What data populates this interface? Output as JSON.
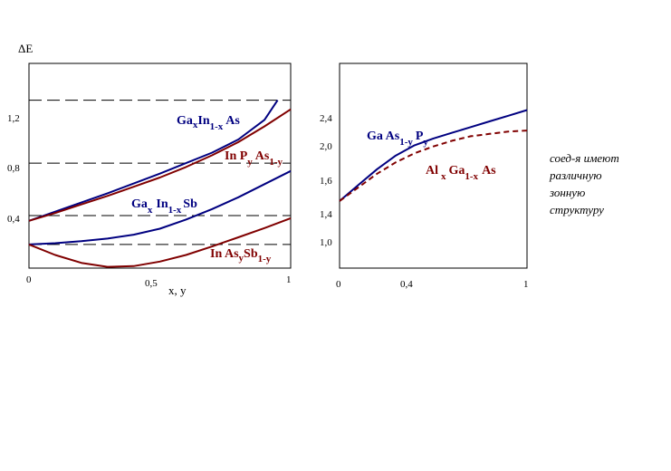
{
  "chart_data": [
    {
      "type": "line",
      "ylabel": "ΔE",
      "xlabel": "x, y",
      "xlim": [
        0,
        1
      ],
      "ylim": [
        0,
        1.56
      ],
      "x_ticks": [
        "0",
        "0,5",
        "1"
      ],
      "y_ticks": [
        "0,4",
        "0,8",
        "1,2"
      ],
      "reference_lines": [
        0.18,
        0.4,
        0.8,
        1.28
      ],
      "series": [
        {
          "name": "GaxIn1-xAs",
          "label_parts": [
            "Ga",
            "x",
            "In",
            "1-x",
            "As"
          ],
          "color": "#000080",
          "style": "solid",
          "x": [
            0,
            0.1,
            0.2,
            0.3,
            0.4,
            0.5,
            0.6,
            0.7,
            0.8,
            0.9,
            0.95
          ],
          "y": [
            0.36,
            0.43,
            0.5,
            0.57,
            0.645,
            0.72,
            0.8,
            0.88,
            0.98,
            1.13,
            1.28
          ]
        },
        {
          "name": "InPyAs1-y",
          "label_parts": [
            "In P",
            "y",
            "As",
            "1-y"
          ],
          "color": "#800000",
          "style": "solid",
          "x": [
            0,
            0.1,
            0.2,
            0.3,
            0.4,
            0.5,
            0.6,
            0.7,
            0.8,
            0.9,
            1.0
          ],
          "y": [
            0.36,
            0.42,
            0.485,
            0.55,
            0.62,
            0.69,
            0.77,
            0.86,
            0.96,
            1.08,
            1.21
          ]
        },
        {
          "name": "GaxIn1-xSb",
          "label_parts": [
            "Ga",
            "x",
            "In",
            "1-x",
            "Sb"
          ],
          "color": "#000080",
          "style": "solid",
          "x": [
            0,
            0.1,
            0.2,
            0.3,
            0.4,
            0.5,
            0.6,
            0.7,
            0.8,
            0.9,
            1.0
          ],
          "y": [
            0.18,
            0.19,
            0.205,
            0.225,
            0.255,
            0.3,
            0.37,
            0.45,
            0.54,
            0.64,
            0.74
          ]
        },
        {
          "name": "InAsySb1-y",
          "label_parts": [
            "In As",
            "y",
            "Sb",
            "1-y"
          ],
          "color": "#800000",
          "style": "solid",
          "x": [
            0,
            0.1,
            0.2,
            0.3,
            0.4,
            0.5,
            0.6,
            0.7,
            0.8,
            0.9,
            1.0
          ],
          "y": [
            0.18,
            0.1,
            0.04,
            0.01,
            0.015,
            0.05,
            0.1,
            0.165,
            0.235,
            0.305,
            0.38
          ]
        }
      ]
    },
    {
      "type": "line",
      "xlim": [
        0,
        1
      ],
      "ylim": [
        0.8,
        2.6
      ],
      "x_ticks": [
        "0",
        "0,4",
        "1"
      ],
      "y_ticks": [
        "1,0",
        "1,4",
        "1,6",
        "2,0",
        "2,4"
      ],
      "series": [
        {
          "name": "GaAs1-yPy",
          "label_parts": [
            "Ga As",
            "1-y",
            "P",
            "y"
          ],
          "color": "#000080",
          "style": "solid",
          "x": [
            0,
            0.1,
            0.2,
            0.3,
            0.4,
            0.5,
            0.6,
            0.7,
            0.8,
            0.9,
            1.0
          ],
          "y": [
            1.39,
            1.53,
            1.67,
            1.79,
            1.88,
            1.94,
            1.99,
            2.04,
            2.09,
            2.14,
            2.19
          ]
        },
        {
          "name": "AlxGa1-xAs",
          "label_parts": [
            "Al",
            "x",
            "Ga",
            "1-x",
            "As"
          ],
          "color": "#800000",
          "style": "dashed",
          "x": [
            0,
            0.1,
            0.2,
            0.3,
            0.4,
            0.5,
            0.6,
            0.7,
            0.8,
            0.9,
            1.0
          ],
          "y": [
            1.39,
            1.51,
            1.63,
            1.73,
            1.81,
            1.87,
            1.92,
            1.96,
            1.98,
            2.0,
            2.01
          ]
        }
      ]
    }
  ],
  "note": [
    "соед-я  имеют",
    "различную",
    "зонную",
    "структуру"
  ]
}
